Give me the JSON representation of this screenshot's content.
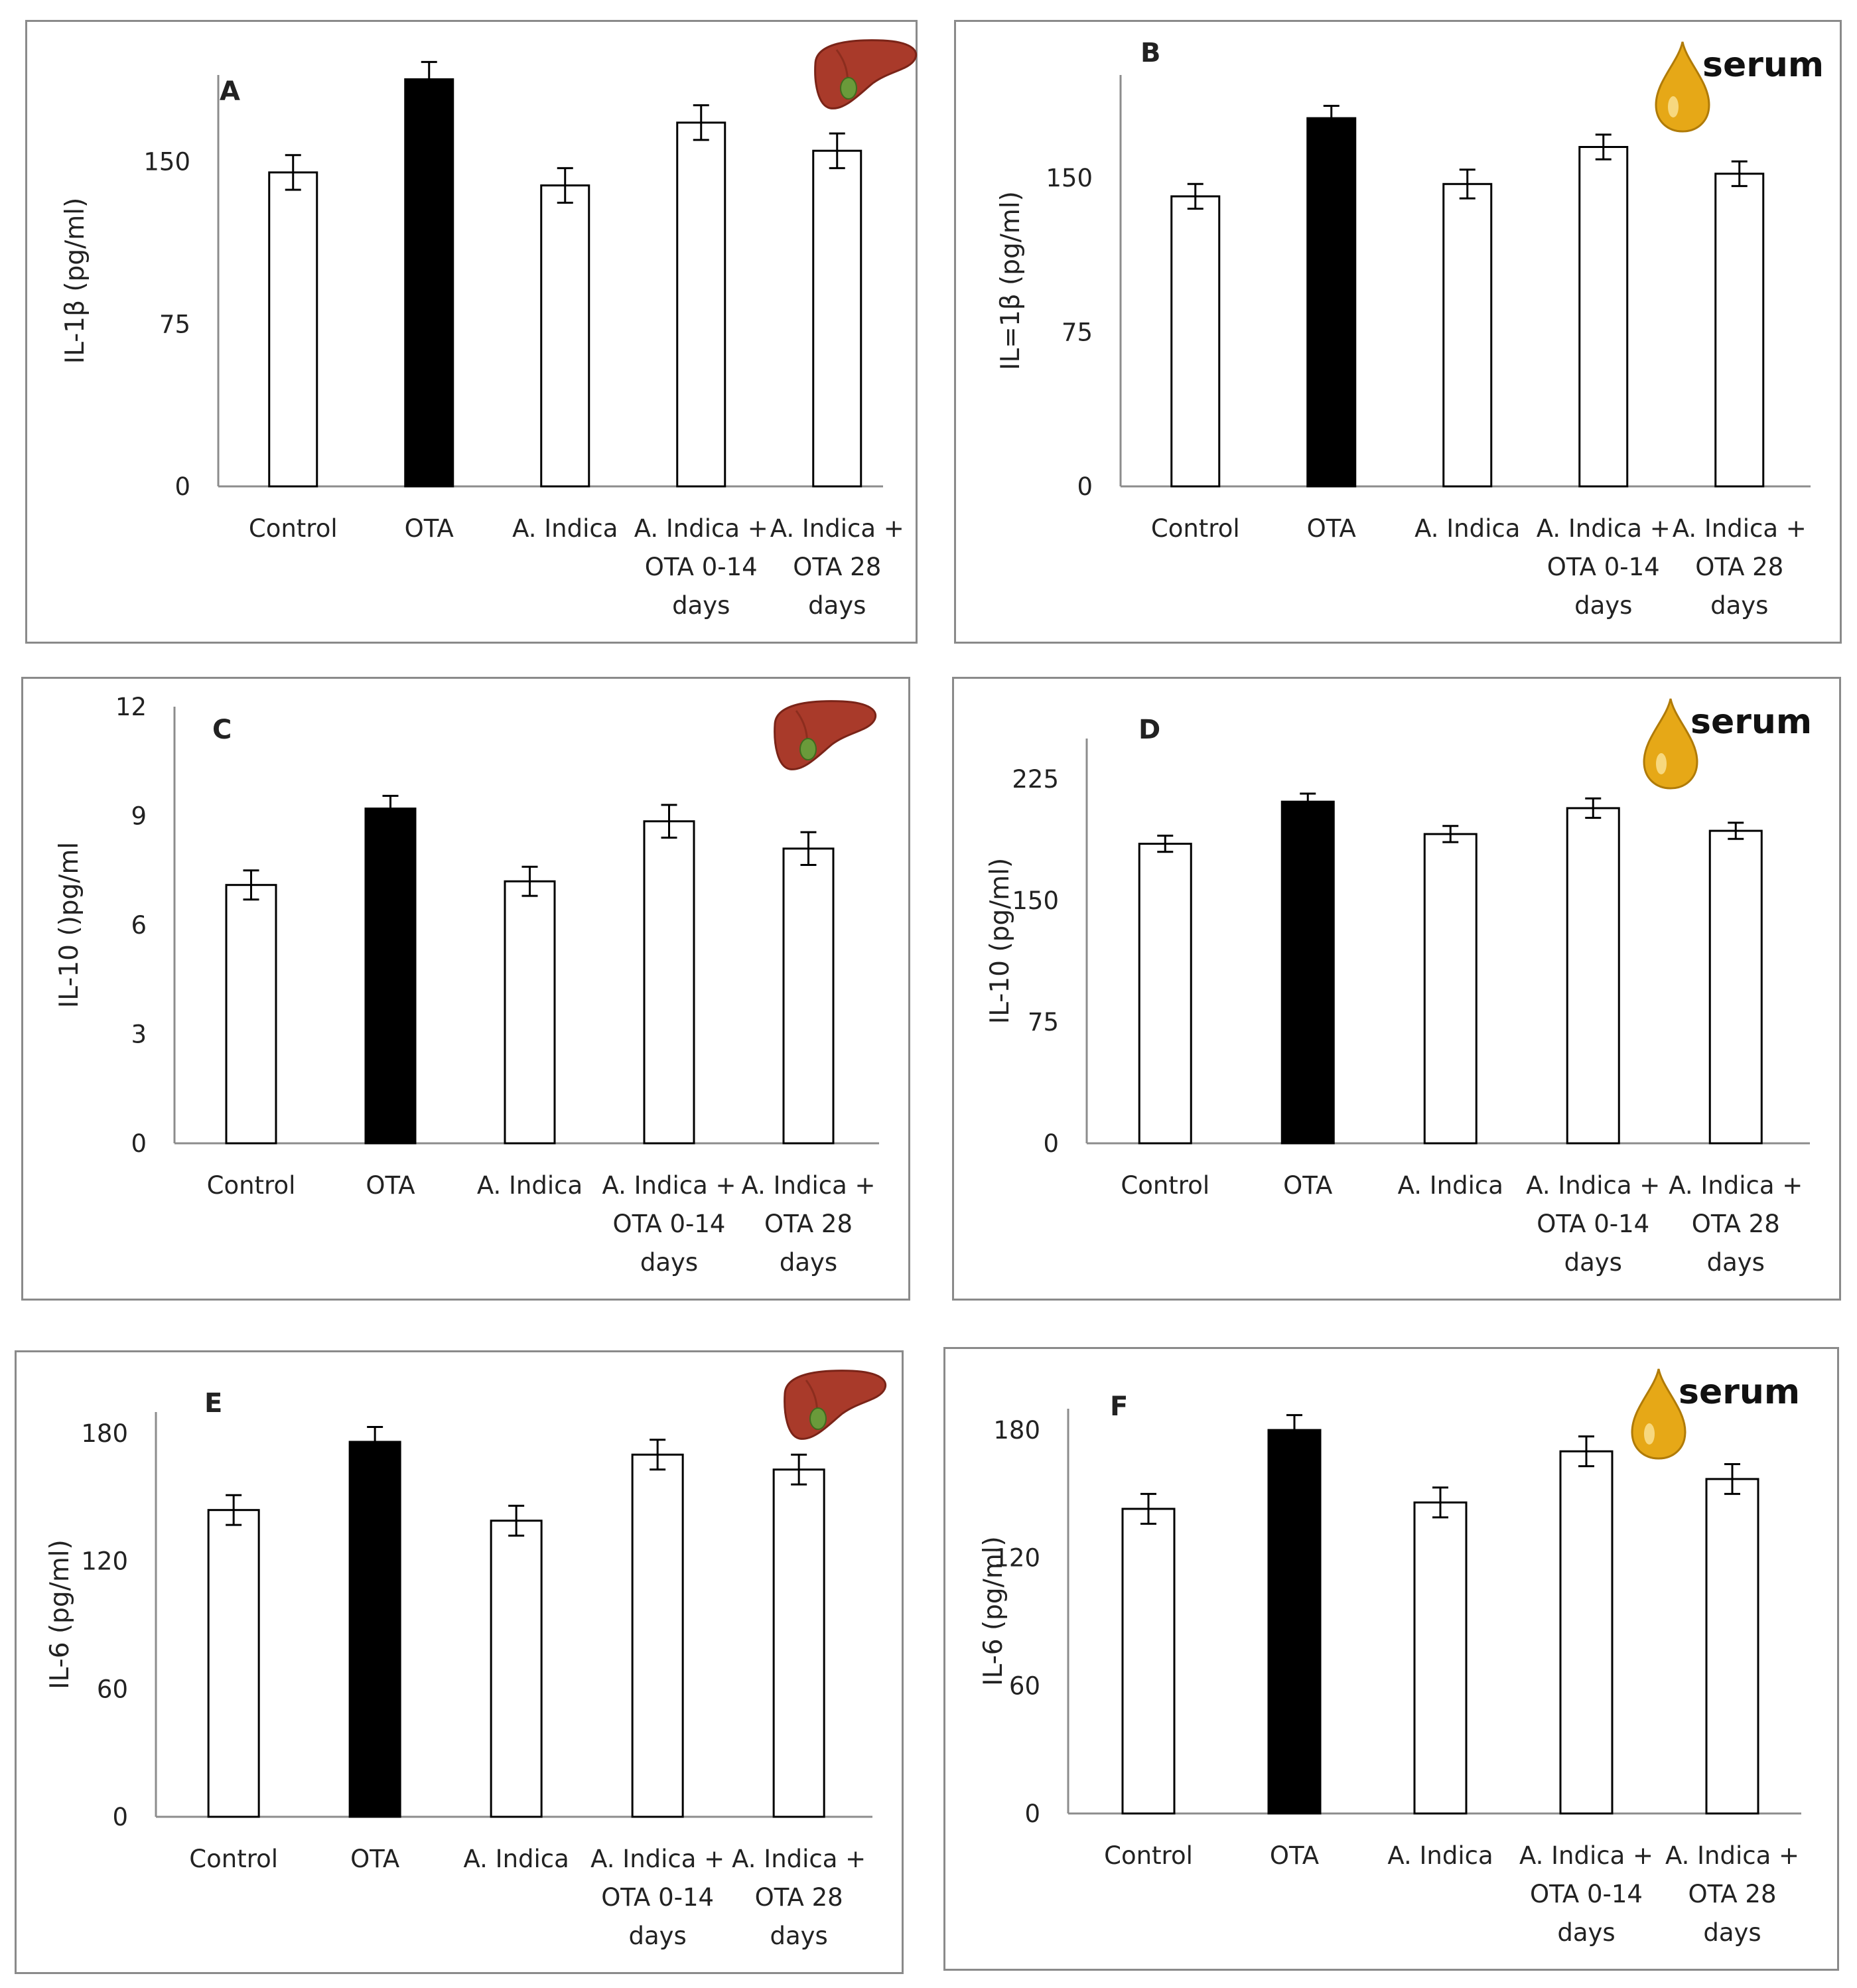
{
  "chart_data": [
    {
      "type": "bar",
      "panel_label": "A",
      "icon": "liver-icon",
      "ylabel": "IL-1β (pg/ml)",
      "ylim": [
        0,
        190
      ],
      "yticks": [
        0,
        75,
        150
      ],
      "categories": [
        "Control",
        "OTA",
        "A. Indica",
        "A. Indica + OTA 0-14 days",
        "A. Indica + OTA 28 days"
      ],
      "values": [
        145,
        188,
        139,
        168,
        155
      ],
      "errors": [
        8,
        8,
        8,
        8,
        8
      ],
      "fills": [
        "#ffffff",
        "#000000",
        "#ffffff",
        "#ffffff",
        "#ffffff"
      ]
    },
    {
      "type": "bar",
      "panel_label": "B",
      "icon": "serum-drop-icon",
      "icon_text": "serum",
      "ylabel": "IL=1β (pg/ml)",
      "ylim": [
        0,
        200
      ],
      "yticks": [
        0,
        75,
        150
      ],
      "categories": [
        "Control",
        "OTA",
        "A. Indica",
        "A. Indica + OTA 0-14 days",
        "A. Indica + OTA 28 days"
      ],
      "values": [
        141,
        179,
        147,
        165,
        152
      ],
      "errors": [
        6,
        6,
        7,
        6,
        6
      ],
      "fills": [
        "#ffffff",
        "#000000",
        "#ffffff",
        "#ffffff",
        "#ffffff"
      ]
    },
    {
      "type": "bar",
      "panel_label": "C",
      "icon": "liver-icon",
      "ylabel": "IL-10 ()pg/ml",
      "ylim": [
        0,
        12
      ],
      "yticks": [
        0,
        3,
        6,
        9,
        12
      ],
      "categories": [
        "Control",
        "OTA",
        "A. Indica",
        "A. Indica + OTA 0-14 days",
        "A. Indica + OTA 28 days"
      ],
      "values": [
        7.1,
        9.2,
        7.2,
        8.85,
        8.1
      ],
      "errors": [
        0.4,
        0.35,
        0.4,
        0.45,
        0.45
      ],
      "fills": [
        "#ffffff",
        "#000000",
        "#ffffff",
        "#ffffff",
        "#ffffff"
      ]
    },
    {
      "type": "bar",
      "panel_label": "D",
      "icon": "serum-drop-icon",
      "icon_text": "serum",
      "ylabel": "IL-10 (pg/ml)",
      "ylim": [
        0,
        250
      ],
      "yticks": [
        0,
        75,
        150,
        225
      ],
      "categories": [
        "Control",
        "OTA",
        "A. Indica",
        "A. Indica + OTA 0-14 days",
        "A. Indica + OTA 28 days"
      ],
      "values": [
        185,
        211,
        191,
        207,
        193
      ],
      "errors": [
        5,
        5,
        5,
        6,
        5
      ],
      "fills": [
        "#ffffff",
        "#000000",
        "#ffffff",
        "#ffffff",
        "#ffffff"
      ]
    },
    {
      "type": "bar",
      "panel_label": "E",
      "icon": "liver-icon",
      "ylabel": "IL-6 (pg/ml)",
      "ylim": [
        0,
        190
      ],
      "yticks": [
        0,
        60,
        120,
        180
      ],
      "categories": [
        "Control",
        "OTA",
        "A. Indica",
        "A. Indica + OTA 0-14 days",
        "A. Indica + OTA 28 days"
      ],
      "values": [
        144,
        176,
        139,
        170,
        163
      ],
      "errors": [
        7,
        7,
        7,
        7,
        7
      ],
      "fills": [
        "#ffffff",
        "#000000",
        "#ffffff",
        "#ffffff",
        "#ffffff"
      ]
    },
    {
      "type": "bar",
      "panel_label": "F",
      "icon": "serum-drop-icon",
      "icon_text": "serum",
      "ylabel": "IL-6 (pg/ml)",
      "ylim": [
        0,
        190
      ],
      "yticks": [
        0,
        60,
        120,
        180
      ],
      "categories": [
        "Control",
        "OTA",
        "A. Indica",
        "A. Indica + OTA 0-14 days",
        "A. Indica + OTA 28 days"
      ],
      "values": [
        143,
        180,
        146,
        170,
        157
      ],
      "errors": [
        7,
        7,
        7,
        7,
        7
      ],
      "fills": [
        "#ffffff",
        "#000000",
        "#ffffff",
        "#ffffff",
        "#ffffff"
      ]
    }
  ],
  "colors": {
    "axis": "#8c8c8c",
    "bar_outline": "#000000",
    "border": "#8a8a8a",
    "liver": "#a93a2a",
    "serum_drop": "#e6a817"
  }
}
